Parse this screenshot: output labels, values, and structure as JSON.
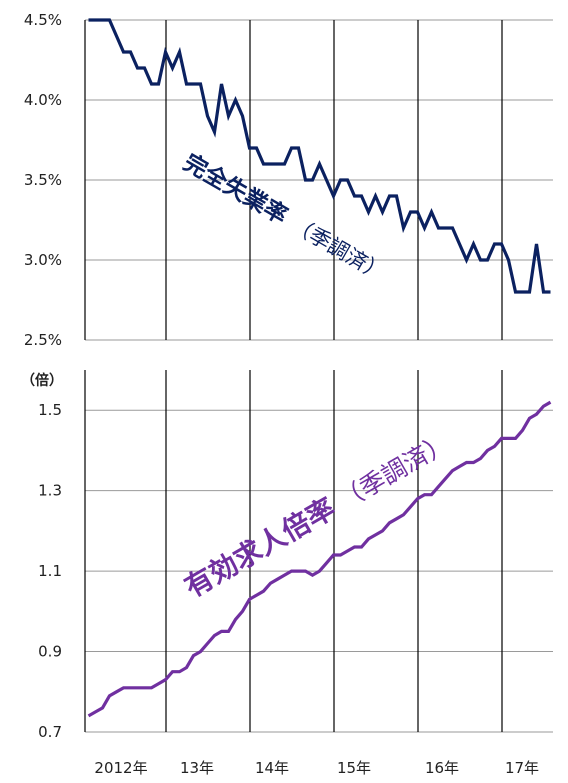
{
  "chart_data": [
    {
      "type": "line",
      "title": "",
      "series_label": "完全失業率",
      "series_label_sub": "（季調済）",
      "color": "#0b2160",
      "ylim": [
        2.5,
        4.5
      ],
      "yticks": [
        4.5,
        4.0,
        3.5,
        3.0,
        2.5
      ],
      "ytick_labels": [
        "4.5%",
        "4.0%",
        "3.5%",
        "3.0%",
        "2.5%"
      ],
      "x_start": "2012-01",
      "values": [
        4.5,
        4.5,
        4.5,
        4.5,
        4.4,
        4.3,
        4.3,
        4.2,
        4.2,
        4.1,
        4.1,
        4.3,
        4.2,
        4.3,
        4.1,
        4.1,
        4.1,
        3.9,
        3.8,
        4.1,
        3.9,
        4.0,
        3.9,
        3.7,
        3.7,
        3.6,
        3.6,
        3.6,
        3.6,
        3.7,
        3.7,
        3.5,
        3.5,
        3.6,
        3.5,
        3.4,
        3.5,
        3.5,
        3.4,
        3.4,
        3.3,
        3.4,
        3.3,
        3.4,
        3.4,
        3.2,
        3.3,
        3.3,
        3.2,
        3.3,
        3.2,
        3.2,
        3.2,
        3.1,
        3.0,
        3.1,
        3.0,
        3.0,
        3.1,
        3.1,
        3.0,
        2.8,
        2.8,
        2.8,
        3.1,
        2.8,
        2.8
      ]
    },
    {
      "type": "line",
      "unit": "（倍）",
      "series_label": "有効求人倍率",
      "series_label_sub": "（季調済）",
      "color": "#7030a0",
      "ylim": [
        0.7,
        1.6
      ],
      "yticks": [
        1.5,
        1.3,
        1.1,
        0.9,
        0.7
      ],
      "ytick_labels": [
        "1.5",
        "1.3",
        "1.1",
        "0.9",
        "0.7"
      ],
      "x_start": "2012-01",
      "values": [
        0.74,
        0.75,
        0.76,
        0.79,
        0.8,
        0.81,
        0.81,
        0.81,
        0.81,
        0.81,
        0.82,
        0.83,
        0.85,
        0.85,
        0.86,
        0.89,
        0.9,
        0.92,
        0.94,
        0.95,
        0.95,
        0.98,
        1.0,
        1.03,
        1.04,
        1.05,
        1.07,
        1.08,
        1.09,
        1.1,
        1.1,
        1.1,
        1.09,
        1.1,
        1.12,
        1.14,
        1.14,
        1.15,
        1.16,
        1.16,
        1.18,
        1.19,
        1.2,
        1.22,
        1.23,
        1.24,
        1.26,
        1.28,
        1.29,
        1.29,
        1.31,
        1.33,
        1.35,
        1.36,
        1.37,
        1.37,
        1.38,
        1.4,
        1.41,
        1.43,
        1.43,
        1.43,
        1.45,
        1.48,
        1.49,
        1.51,
        1.52
      ]
    }
  ],
  "x_axis": {
    "labels": [
      "2012年",
      "13年",
      "14年",
      "15年",
      "16年",
      "17年"
    ]
  }
}
